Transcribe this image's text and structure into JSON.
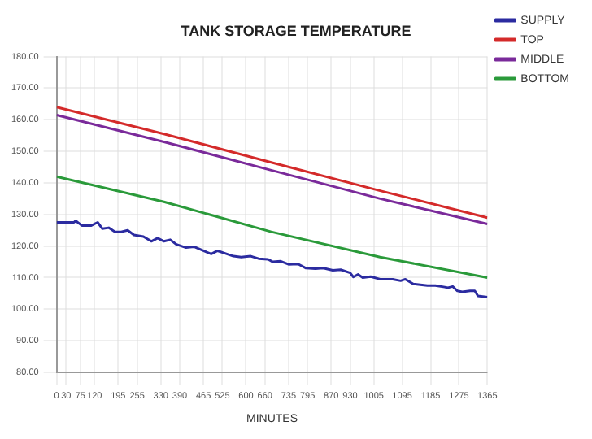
{
  "chart_data": {
    "type": "line",
    "title": "TANK STORAGE TEMPERATURE",
    "xlabel": "MINUTES",
    "xlim": [
      0,
      1365
    ],
    "xticks": [
      0,
      30,
      75,
      120,
      195,
      255,
      330,
      390,
      465,
      525,
      600,
      660,
      735,
      795,
      870,
      930,
      1005,
      1095,
      1185,
      1275,
      1365
    ],
    "ylim": [
      80,
      180
    ],
    "yticks": [
      {
        "value": 80,
        "label": "80.00"
      },
      {
        "value": 90,
        "label": "90.00"
      },
      {
        "value": 100,
        "label": "100.00"
      },
      {
        "value": 110,
        "label": "110.00"
      },
      {
        "value": 120,
        "label": "120.00"
      },
      {
        "value": 130,
        "label": "130.00"
      },
      {
        "value": 140,
        "label": "140.00"
      },
      {
        "value": 150,
        "label": "150.00"
      },
      {
        "value": 160,
        "label": "160.00"
      },
      {
        "value": 170,
        "label": "170.00"
      },
      {
        "value": 180,
        "label": "180.00"
      }
    ],
    "grid": true,
    "legend": "right",
    "marker": "none",
    "line_style": "solid",
    "series": [
      {
        "name": "SUPPLY",
        "color": "#2b2ba0",
        "x": [
          0,
          55,
          60,
          80,
          110,
          130,
          145,
          165,
          185,
          205,
          225,
          245,
          275,
          300,
          320,
          340,
          360,
          380,
          410,
          435,
          465,
          490,
          510,
          530,
          560,
          585,
          615,
          640,
          670,
          685,
          710,
          735,
          765,
          790,
          820,
          845,
          875,
          900,
          930,
          940,
          955,
          970,
          995,
          1025,
          1065,
          1090,
          1105,
          1130,
          1175,
          1200,
          1230,
          1240,
          1255,
          1270,
          1285,
          1310,
          1325,
          1335,
          1365
        ],
        "values": [
          127.5,
          127.5,
          128,
          126.5,
          126.5,
          127.5,
          125.5,
          125.8,
          124.5,
          124.5,
          125,
          123.5,
          123,
          121.5,
          122.5,
          121.5,
          122,
          120.5,
          119.5,
          119.8,
          118.5,
          117.5,
          118.5,
          117.8,
          116.8,
          116.5,
          116.8,
          116,
          115.8,
          115,
          115.2,
          114.2,
          114.3,
          113,
          112.8,
          113,
          112.3,
          112.5,
          111.5,
          110.2,
          111,
          110,
          110.3,
          109.5,
          109.5,
          109,
          109.5,
          108,
          107.5,
          107.5,
          107,
          106.8,
          107.2,
          105.8,
          105.5,
          105.8,
          105.8,
          104.2,
          103.8
        ]
      },
      {
        "name": "TOP",
        "color": "#d42a2a",
        "x": [
          0,
          340,
          680,
          1025,
          1365
        ],
        "values": [
          164,
          155.5,
          146.5,
          137.5,
          129
        ]
      },
      {
        "name": "MIDDLE",
        "color": "#7a2a9a",
        "x": [
          0,
          340,
          680,
          1025,
          1365
        ],
        "values": [
          161.5,
          153,
          144,
          135,
          127
        ]
      },
      {
        "name": "BOTTOM",
        "color": "#2a9a3a",
        "x": [
          0,
          340,
          680,
          1025,
          1365
        ],
        "values": [
          142,
          134,
          124.5,
          116.5,
          110
        ]
      }
    ]
  }
}
